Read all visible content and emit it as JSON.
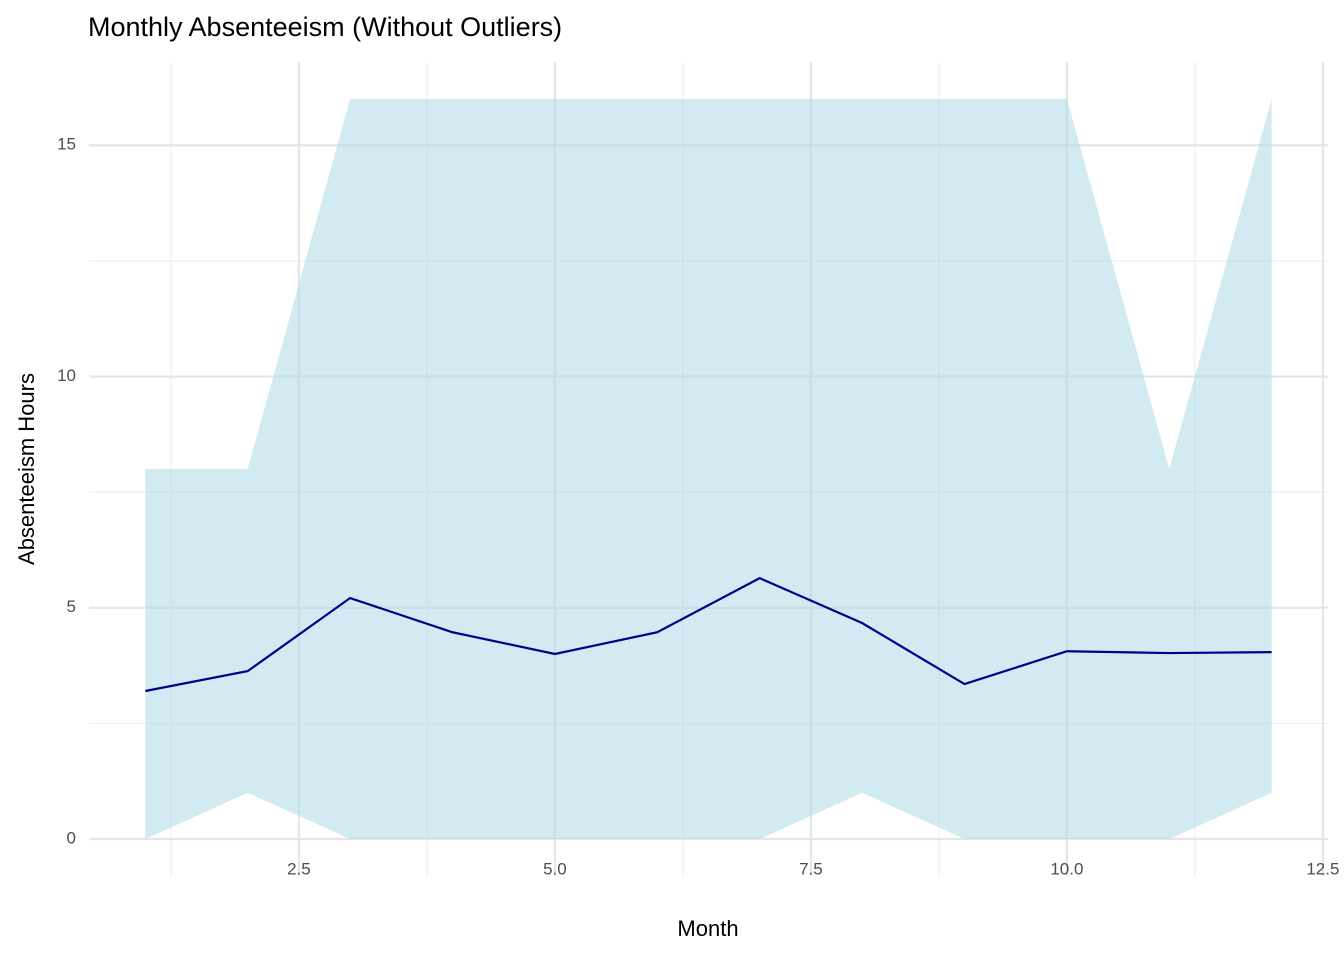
{
  "chart_data": {
    "type": "ribbon-line",
    "title": "Monthly Absenteeism (Without Outliers)",
    "x_label": "Month",
    "y_label": "Absenteeism Hours",
    "x": [
      1,
      2,
      3,
      4,
      5,
      6,
      7,
      8,
      9,
      10,
      11,
      12
    ],
    "values": [
      3.2,
      3.63,
      5.21,
      4.47,
      4.0,
      4.47,
      5.64,
      4.67,
      3.35,
      4.06,
      4.02,
      4.04
    ],
    "lower": [
      0,
      1,
      0,
      0,
      0,
      0,
      0,
      1,
      0,
      0,
      0,
      1
    ],
    "upper": [
      8,
      8,
      16,
      16,
      16,
      16,
      16,
      16,
      16,
      16,
      8,
      16
    ],
    "color": "#00008b",
    "fill": "#add8e6",
    "xlim": [
      0.45,
      12.55
    ],
    "ylim": [
      -0.8,
      16.8
    ],
    "xticks": [
      2.5,
      {
        "value": 5,
        "label": "5.0"
      },
      7.5,
      {
        "value": 10,
        "label": "10.0"
      },
      12.5
    ],
    "yticks": [
      0,
      5,
      10,
      15
    ],
    "grid": true
  }
}
